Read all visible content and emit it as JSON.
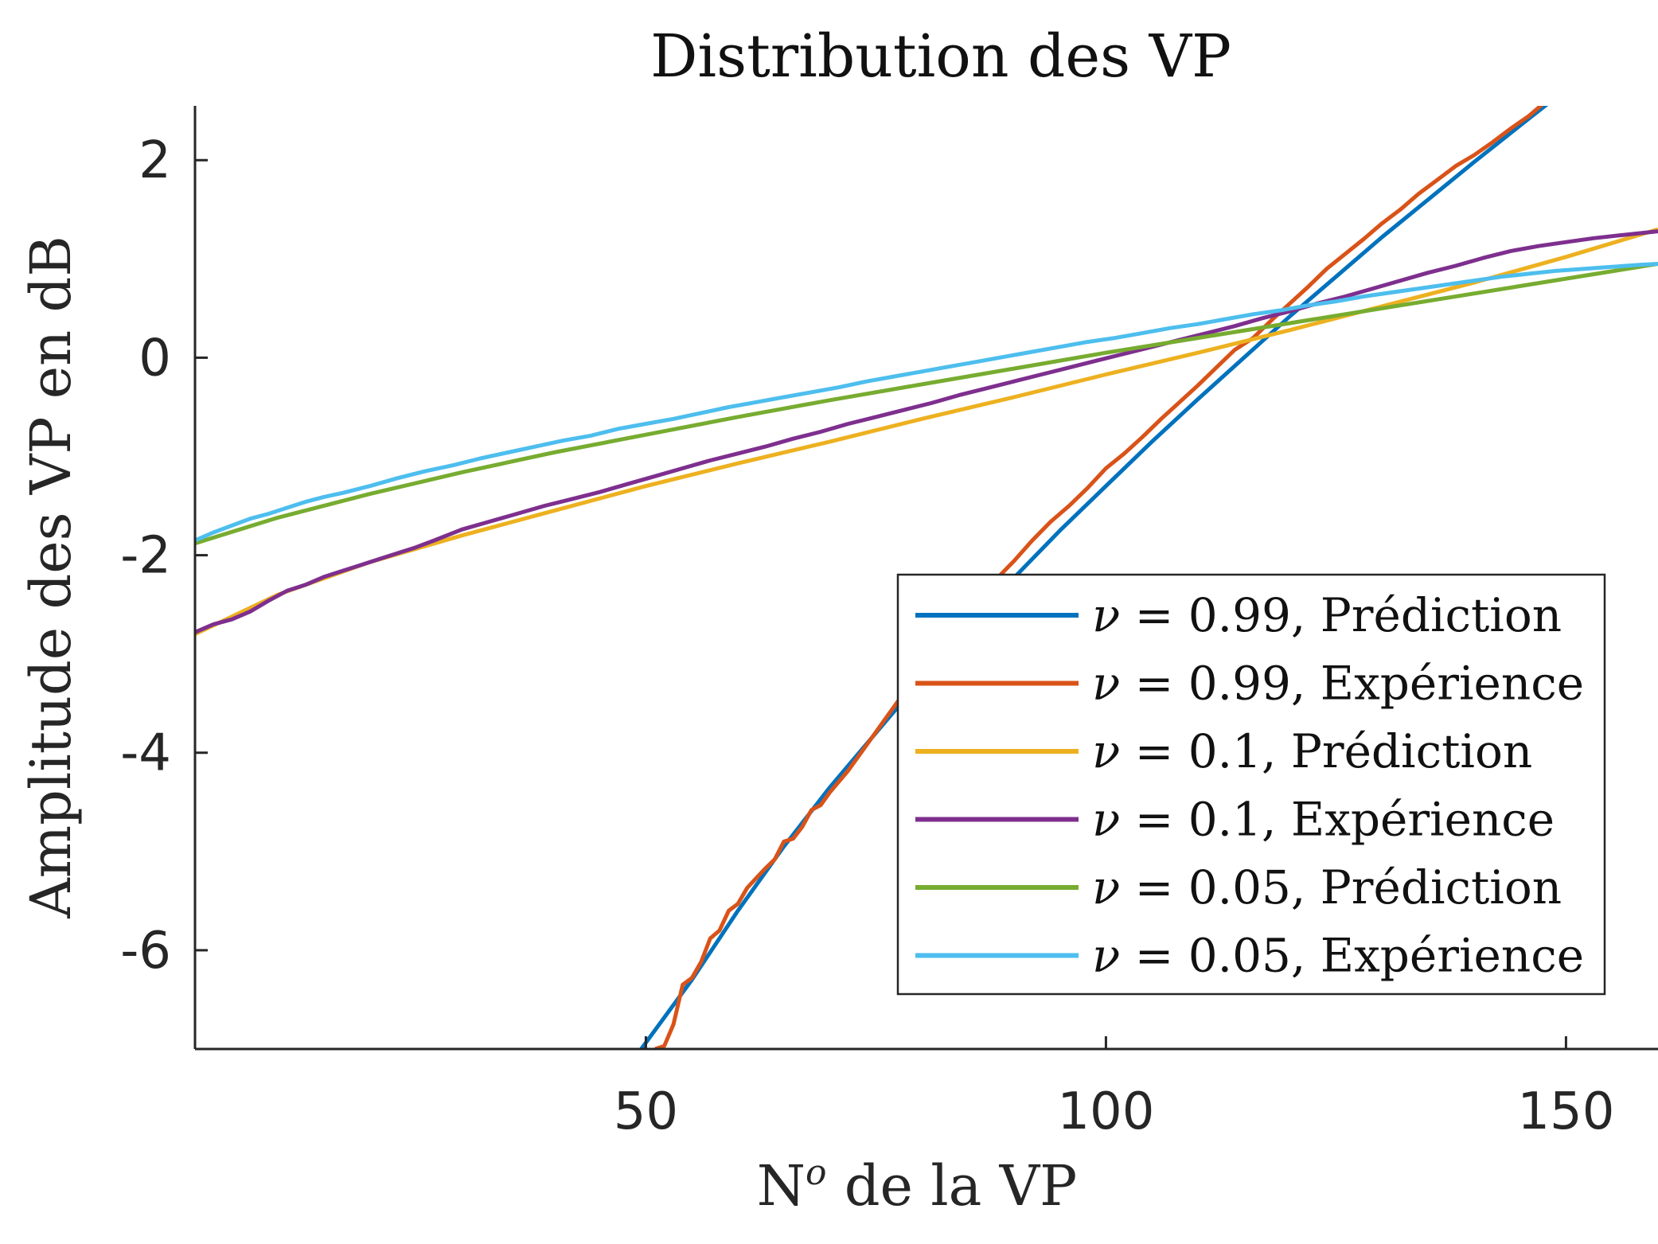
{
  "chart_data": {
    "type": "line",
    "title": "Distribution des VP",
    "xlabel": "Nº de la VP",
    "xlabel_main": "N",
    "xlabel_superscript": "o",
    "xlabel_rest": " de la VP",
    "ylabel": "Amplitude des VP en dB",
    "xlim": [
      1,
      160
    ],
    "ylim": [
      -7,
      2.55
    ],
    "x_ticks": [
      50,
      100,
      150
    ],
    "x_tick_labels": [
      "50",
      "100",
      "150"
    ],
    "y_ticks": [
      2,
      0,
      -2,
      -4,
      -6
    ],
    "y_tick_labels": [
      "2",
      "0",
      "-2",
      "-4",
      "-6"
    ],
    "grid": false,
    "legend_position": "lower-right",
    "series": [
      {
        "name": "ν = 0.99, Prédiction",
        "legend_nu": "ν",
        "legend_rest": " = 0.99, Prédiction",
        "color": "#0072BD",
        "points": [
          [
            49.5,
            -7.0
          ],
          [
            55,
            -6.3
          ],
          [
            60,
            -5.6
          ],
          [
            65,
            -4.95
          ],
          [
            70,
            -4.35
          ],
          [
            75,
            -3.8
          ],
          [
            80,
            -3.25
          ],
          [
            85,
            -2.73
          ],
          [
            90,
            -2.23
          ],
          [
            95,
            -1.75
          ],
          [
            100,
            -1.3
          ],
          [
            105,
            -0.85
          ],
          [
            110,
            -0.42
          ],
          [
            115,
            0.0
          ],
          [
            120,
            0.42
          ],
          [
            125,
            0.82
          ],
          [
            130,
            1.22
          ],
          [
            135,
            1.6
          ],
          [
            140,
            1.98
          ],
          [
            145,
            2.35
          ],
          [
            148,
            2.57
          ]
        ]
      },
      {
        "name": "ν = 0.99, Expérience",
        "legend_nu": "ν",
        "legend_rest": " = 0.99, Expérience",
        "color": "#D95319",
        "points": [
          [
            51,
            -7.0
          ],
          [
            52,
            -6.97
          ],
          [
            53,
            -6.75
          ],
          [
            54,
            -6.35
          ],
          [
            55,
            -6.28
          ],
          [
            56,
            -6.12
          ],
          [
            57,
            -5.88
          ],
          [
            58,
            -5.8
          ],
          [
            59,
            -5.6
          ],
          [
            60,
            -5.53
          ],
          [
            61,
            -5.37
          ],
          [
            62,
            -5.27
          ],
          [
            63,
            -5.17
          ],
          [
            64,
            -5.08
          ],
          [
            65,
            -4.9
          ],
          [
            66,
            -4.87
          ],
          [
            67,
            -4.75
          ],
          [
            68,
            -4.58
          ],
          [
            69,
            -4.53
          ],
          [
            70,
            -4.4
          ],
          [
            72,
            -4.18
          ],
          [
            74,
            -3.92
          ],
          [
            76,
            -3.66
          ],
          [
            78,
            -3.4
          ],
          [
            80,
            -3.15
          ],
          [
            82,
            -2.92
          ],
          [
            84,
            -2.7
          ],
          [
            86,
            -2.46
          ],
          [
            88,
            -2.25
          ],
          [
            90,
            -2.06
          ],
          [
            92,
            -1.85
          ],
          [
            94,
            -1.66
          ],
          [
            96,
            -1.5
          ],
          [
            98,
            -1.32
          ],
          [
            100,
            -1.12
          ],
          [
            102,
            -0.97
          ],
          [
            104,
            -0.8
          ],
          [
            106,
            -0.62
          ],
          [
            108,
            -0.45
          ],
          [
            110,
            -0.28
          ],
          [
            112,
            -0.1
          ],
          [
            114,
            0.08
          ],
          [
            116,
            0.2
          ],
          [
            118,
            0.38
          ],
          [
            120,
            0.55
          ],
          [
            122,
            0.72
          ],
          [
            124,
            0.9
          ],
          [
            126,
            1.05
          ],
          [
            128,
            1.2
          ],
          [
            130,
            1.36
          ],
          [
            132,
            1.5
          ],
          [
            134,
            1.66
          ],
          [
            136,
            1.8
          ],
          [
            138,
            1.94
          ],
          [
            140,
            2.05
          ],
          [
            142,
            2.18
          ],
          [
            144,
            2.32
          ],
          [
            146,
            2.45
          ],
          [
            147.5,
            2.57
          ]
        ]
      },
      {
        "name": "ν = 0.1, Prédiction",
        "legend_nu": "ν",
        "legend_rest": " = 0.1, Prédiction",
        "color": "#EDB120",
        "points": [
          [
            1,
            -2.8
          ],
          [
            10,
            -2.4
          ],
          [
            20,
            -2.07
          ],
          [
            30,
            -1.8
          ],
          [
            40,
            -1.55
          ],
          [
            50,
            -1.3
          ],
          [
            60,
            -1.07
          ],
          [
            70,
            -0.85
          ],
          [
            80,
            -0.62
          ],
          [
            90,
            -0.4
          ],
          [
            100,
            -0.17
          ],
          [
            110,
            0.05
          ],
          [
            120,
            0.28
          ],
          [
            130,
            0.52
          ],
          [
            140,
            0.76
          ],
          [
            150,
            1.02
          ],
          [
            160,
            1.3
          ]
        ]
      },
      {
        "name": "ν = 0.1, Expérience",
        "legend_nu": "ν",
        "legend_rest": " = 0.1, Expérience",
        "color": "#7E2F8E",
        "points": [
          [
            1,
            -2.78
          ],
          [
            3,
            -2.7
          ],
          [
            5,
            -2.65
          ],
          [
            7,
            -2.57
          ],
          [
            9,
            -2.46
          ],
          [
            11,
            -2.36
          ],
          [
            13,
            -2.3
          ],
          [
            15,
            -2.22
          ],
          [
            17,
            -2.16
          ],
          [
            19,
            -2.1
          ],
          [
            21,
            -2.04
          ],
          [
            23,
            -1.98
          ],
          [
            25,
            -1.92
          ],
          [
            27,
            -1.85
          ],
          [
            30,
            -1.74
          ],
          [
            33,
            -1.66
          ],
          [
            36,
            -1.58
          ],
          [
            39,
            -1.5
          ],
          [
            42,
            -1.43
          ],
          [
            45,
            -1.36
          ],
          [
            48,
            -1.28
          ],
          [
            51,
            -1.2
          ],
          [
            54,
            -1.12
          ],
          [
            57,
            -1.04
          ],
          [
            60,
            -0.97
          ],
          [
            63,
            -0.9
          ],
          [
            66,
            -0.82
          ],
          [
            69,
            -0.75
          ],
          [
            72,
            -0.67
          ],
          [
            75,
            -0.6
          ],
          [
            78,
            -0.53
          ],
          [
            81,
            -0.46
          ],
          [
            84,
            -0.38
          ],
          [
            87,
            -0.31
          ],
          [
            90,
            -0.24
          ],
          [
            93,
            -0.17
          ],
          [
            96,
            -0.1
          ],
          [
            99,
            -0.03
          ],
          [
            102,
            0.04
          ],
          [
            105,
            0.11
          ],
          [
            108,
            0.18
          ],
          [
            111,
            0.25
          ],
          [
            114,
            0.32
          ],
          [
            117,
            0.4
          ],
          [
            120,
            0.47
          ],
          [
            123,
            0.55
          ],
          [
            126,
            0.62
          ],
          [
            129,
            0.7
          ],
          [
            132,
            0.78
          ],
          [
            135,
            0.86
          ],
          [
            138,
            0.93
          ],
          [
            141,
            1.01
          ],
          [
            144,
            1.08
          ],
          [
            147,
            1.13
          ],
          [
            150,
            1.17
          ],
          [
            153,
            1.21
          ],
          [
            156,
            1.24
          ],
          [
            160,
            1.28
          ]
        ]
      },
      {
        "name": "ν = 0.05, Prédiction",
        "legend_nu": "ν",
        "legend_rest": " = 0.05, Prédiction",
        "color": "#77AC30",
        "points": [
          [
            1,
            -1.88
          ],
          [
            10,
            -1.62
          ],
          [
            20,
            -1.38
          ],
          [
            30,
            -1.16
          ],
          [
            40,
            -0.96
          ],
          [
            50,
            -0.78
          ],
          [
            60,
            -0.6
          ],
          [
            70,
            -0.43
          ],
          [
            80,
            -0.27
          ],
          [
            90,
            -0.11
          ],
          [
            100,
            0.05
          ],
          [
            110,
            0.2
          ],
          [
            120,
            0.35
          ],
          [
            130,
            0.5
          ],
          [
            140,
            0.65
          ],
          [
            150,
            0.8
          ],
          [
            160,
            0.95
          ]
        ]
      },
      {
        "name": "ν = 0.05, Expérience",
        "legend_nu": "ν",
        "legend_rest": " = 0.05, Expérience",
        "color": "#4DBEEE",
        "points": [
          [
            1,
            -1.85
          ],
          [
            3,
            -1.77
          ],
          [
            5,
            -1.7
          ],
          [
            7,
            -1.63
          ],
          [
            9,
            -1.58
          ],
          [
            11,
            -1.52
          ],
          [
            13,
            -1.46
          ],
          [
            15,
            -1.41
          ],
          [
            17,
            -1.37
          ],
          [
            20,
            -1.3
          ],
          [
            23,
            -1.22
          ],
          [
            26,
            -1.15
          ],
          [
            29,
            -1.09
          ],
          [
            32,
            -1.02
          ],
          [
            35,
            -0.96
          ],
          [
            38,
            -0.9
          ],
          [
            41,
            -0.84
          ],
          [
            44,
            -0.79
          ],
          [
            47,
            -0.72
          ],
          [
            50,
            -0.67
          ],
          [
            53,
            -0.62
          ],
          [
            56,
            -0.56
          ],
          [
            59,
            -0.5
          ],
          [
            62,
            -0.45
          ],
          [
            65,
            -0.4
          ],
          [
            68,
            -0.35
          ],
          [
            71,
            -0.3
          ],
          [
            74,
            -0.24
          ],
          [
            77,
            -0.19
          ],
          [
            80,
            -0.14
          ],
          [
            83,
            -0.09
          ],
          [
            86,
            -0.04
          ],
          [
            89,
            0.01
          ],
          [
            92,
            0.06
          ],
          [
            95,
            0.11
          ],
          [
            98,
            0.16
          ],
          [
            101,
            0.2
          ],
          [
            104,
            0.25
          ],
          [
            107,
            0.3
          ],
          [
            110,
            0.34
          ],
          [
            113,
            0.39
          ],
          [
            116,
            0.44
          ],
          [
            119,
            0.48
          ],
          [
            122,
            0.53
          ],
          [
            125,
            0.57
          ],
          [
            128,
            0.62
          ],
          [
            131,
            0.66
          ],
          [
            134,
            0.7
          ],
          [
            137,
            0.74
          ],
          [
            140,
            0.78
          ],
          [
            143,
            0.82
          ],
          [
            146,
            0.85
          ],
          [
            149,
            0.88
          ],
          [
            152,
            0.9
          ],
          [
            155,
            0.92
          ],
          [
            158,
            0.94
          ],
          [
            160,
            0.95
          ]
        ]
      }
    ]
  }
}
